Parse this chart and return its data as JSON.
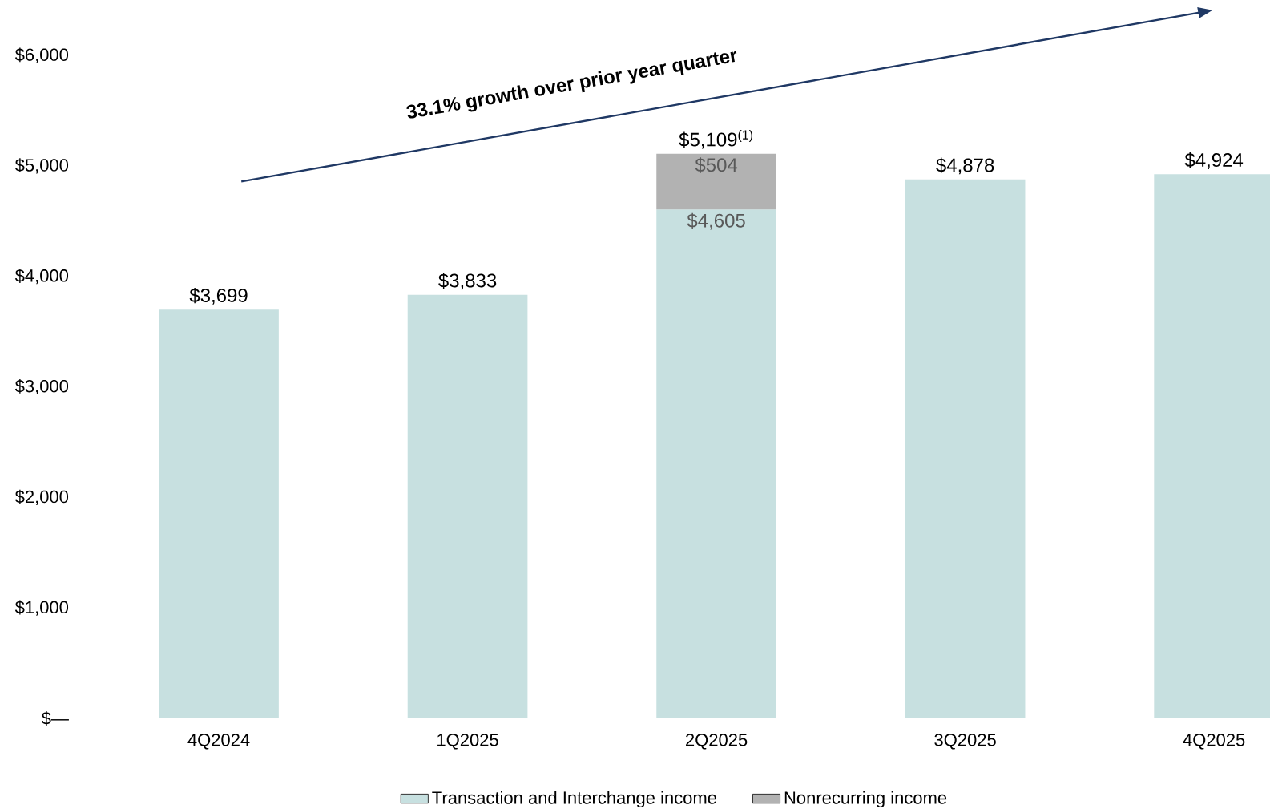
{
  "chart_data": {
    "type": "bar",
    "stacked": true,
    "categories": [
      "4Q2024",
      "1Q2025",
      "2Q2025",
      "3Q2025",
      "4Q2025"
    ],
    "series": [
      {
        "name": "Transaction and Interchange income",
        "color": "#c7e0e0",
        "values": [
          3699,
          3833,
          4605,
          4878,
          4924
        ],
        "value_labels": [
          null,
          null,
          "$4,605",
          null,
          null
        ]
      },
      {
        "name": "Nonrecurring income",
        "color": "#b2b2b2",
        "values": [
          null,
          null,
          504,
          null,
          null
        ],
        "value_labels": [
          null,
          null,
          "$504",
          null,
          null
        ]
      }
    ],
    "totals": [
      "$3,699",
      "$3,833",
      "$5,109$^{(1)}$",
      "$4,878",
      "$4,924"
    ],
    "ylim": [
      0,
      6000
    ],
    "yticks": [
      {
        "value": 0,
        "label": "$—"
      },
      {
        "value": 1000,
        "label": "$1,000"
      },
      {
        "value": 2000,
        "label": "$2,000"
      },
      {
        "value": 3000,
        "label": "$3,000"
      },
      {
        "value": 4000,
        "label": "$4,000"
      },
      {
        "value": 5000,
        "label": "$5,000"
      },
      {
        "value": 6000,
        "label": "$6,000"
      }
    ],
    "legend": "bottom",
    "annotations": [
      "33.1% growth over prior year quarter"
    ]
  }
}
